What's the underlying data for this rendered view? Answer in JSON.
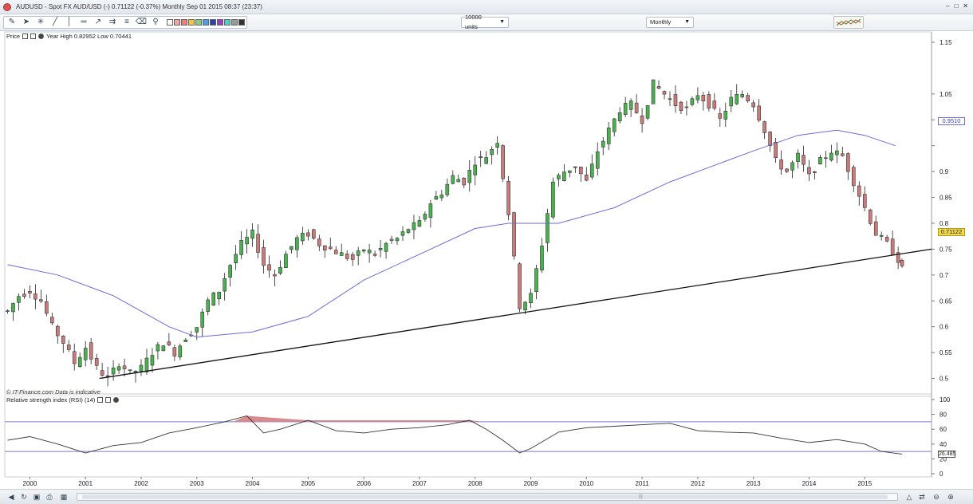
{
  "window": {
    "title": "AUDUSD - Spot FX AUD/USD (-)    0.71122 (-0.37%)    Monthly   Sep 01 2015 08:37 (23:37)",
    "controls": [
      "‒",
      "□",
      "✕"
    ]
  },
  "toolbar": {
    "units_label": "10000 units",
    "interval_label": "Monthly",
    "tool_icons": [
      "ruler-icon",
      "pointer-icon",
      "crosshair-icon",
      "line-icon",
      "vertical-line-icon",
      "horizontal-line-icon",
      "trend-icon",
      "channel-icon",
      "fibonacci-icon",
      "delete-icon",
      "zoom-icon"
    ],
    "swatch_colors": [
      "#ffffff",
      "#f4a3a3",
      "#f27c7c",
      "#f5c542",
      "#7fd17f",
      "#4a9fe0",
      "#2f3fae",
      "#9a3fc0",
      "#4ad0d0",
      "#999999",
      "#333333"
    ]
  },
  "price_panel": {
    "title": "Price",
    "stats": "Year High 0.82952 Low 0.70441",
    "footer": "© IT-Finance.com  Data is indicative",
    "last_price_tag": "0.71122",
    "ma_tag": "0.9510"
  },
  "rsi_panel": {
    "title": "Relative strength index (RSI) (14)",
    "value_tag": "26.485"
  },
  "colors": {
    "up_candle": "#4caf50",
    "down_candle": "#c77b7b",
    "moving_average": "#6a6ae0",
    "trendline": "#111111",
    "rsi_line": "#333333",
    "rsi_band": "#7b7bd6",
    "overbought_fill": "#d98a8a"
  },
  "chart_data": [
    {
      "type": "candlestick",
      "title": "AUDUSD - Spot FX AUD/USD (-)",
      "interval": "Monthly",
      "x": [
        1999.6,
        1999.8,
        2000.0,
        2000.2,
        2000.4,
        2000.6,
        2000.8,
        2001.0,
        2001.2,
        2001.4,
        2001.6,
        2001.8,
        2002.0,
        2002.2,
        2002.4,
        2002.6,
        2002.8,
        2003.0,
        2003.2,
        2003.4,
        2003.6,
        2003.8,
        2004.0,
        2004.2,
        2004.4,
        2004.6,
        2004.8,
        2005.0,
        2005.2,
        2005.4,
        2005.6,
        2005.8,
        2006.0,
        2006.2,
        2006.4,
        2006.6,
        2006.8,
        2007.0,
        2007.2,
        2007.4,
        2007.6,
        2007.8,
        2008.0,
        2008.2,
        2008.4,
        2008.6,
        2008.8,
        2009.0,
        2009.2,
        2009.4,
        2009.6,
        2009.8,
        2010.0,
        2010.2,
        2010.4,
        2010.6,
        2010.8,
        2011.0,
        2011.2,
        2011.4,
        2011.6,
        2011.8,
        2012.0,
        2012.2,
        2012.4,
        2012.6,
        2012.8,
        2013.0,
        2013.2,
        2013.4,
        2013.6,
        2013.8,
        2014.0,
        2014.2,
        2014.4,
        2014.6,
        2014.8,
        2015.0,
        2015.2,
        2015.4,
        2015.6,
        2015.67
      ],
      "close": [
        0.63,
        0.66,
        0.67,
        0.65,
        0.6,
        0.57,
        0.53,
        0.56,
        0.52,
        0.5,
        0.53,
        0.51,
        0.52,
        0.55,
        0.57,
        0.55,
        0.58,
        0.6,
        0.65,
        0.67,
        0.72,
        0.76,
        0.78,
        0.72,
        0.7,
        0.74,
        0.77,
        0.78,
        0.76,
        0.75,
        0.74,
        0.73,
        0.75,
        0.74,
        0.76,
        0.77,
        0.79,
        0.8,
        0.84,
        0.86,
        0.89,
        0.88,
        0.92,
        0.93,
        0.96,
        0.82,
        0.64,
        0.66,
        0.76,
        0.88,
        0.9,
        0.91,
        0.88,
        0.94,
        0.98,
        1.02,
        1.03,
        1.0,
        1.07,
        1.05,
        1.03,
        1.02,
        1.05,
        1.03,
        1.0,
        1.04,
        1.05,
        1.03,
        0.98,
        0.92,
        0.9,
        0.93,
        0.89,
        0.92,
        0.94,
        0.93,
        0.88,
        0.83,
        0.78,
        0.76,
        0.73,
        0.71122
      ],
      "ma_x": [
        1999.6,
        2000.5,
        2001.5,
        2002.5,
        2003.0,
        2004.0,
        2005.0,
        2006.0,
        2007.0,
        2008.0,
        2008.6,
        2009.5,
        2010.5,
        2011.5,
        2012.5,
        2013.0,
        2013.8,
        2014.5,
        2015.0,
        2015.55
      ],
      "ma": [
        0.72,
        0.7,
        0.66,
        0.6,
        0.58,
        0.59,
        0.62,
        0.69,
        0.74,
        0.79,
        0.8,
        0.8,
        0.83,
        0.88,
        0.92,
        0.94,
        0.97,
        0.98,
        0.97,
        0.95
      ],
      "trendline": {
        "from": [
          2001.25,
          0.5
        ],
        "to": [
          2016.2,
          0.75
        ]
      },
      "year_high": 0.82952,
      "year_low": 0.70441,
      "last": 0.71122,
      "ma_last": 0.951,
      "y_ticks": [
        0.5,
        0.55,
        0.6,
        0.65,
        0.7,
        0.75,
        0.8,
        0.85,
        0.9,
        0.95,
        1,
        1.05,
        1.15
      ],
      "y_tick_labels": [
        "0.5",
        "0.55",
        "0.6",
        "0.65",
        "0.7",
        "0.75",
        "0.8",
        "0.85",
        "0.9",
        "",
        "1",
        "1.05",
        "1.15"
      ],
      "x_ticks": [
        "2000",
        "2001",
        "2002",
        "2003",
        "2004",
        "2005",
        "2006",
        "2007",
        "2008",
        "2009",
        "2010",
        "2011",
        "2012",
        "2013",
        "2014",
        "2015"
      ],
      "ylim": [
        0.47,
        1.17
      ],
      "xlim": [
        1999.55,
        2016.2
      ]
    },
    {
      "type": "line",
      "title": "Relative strength index (RSI) (14)",
      "x": [
        1999.6,
        2000.0,
        2000.5,
        2001.0,
        2001.5,
        2002.0,
        2002.5,
        2003.0,
        2003.5,
        2003.9,
        2004.2,
        2004.5,
        2005.0,
        2005.5,
        2006.0,
        2006.5,
        2007.0,
        2007.5,
        2007.9,
        2008.2,
        2008.5,
        2008.8,
        2009.0,
        2009.5,
        2010.0,
        2010.5,
        2011.0,
        2011.5,
        2012.0,
        2012.5,
        2013.0,
        2013.5,
        2014.0,
        2014.5,
        2015.0,
        2015.3,
        2015.67
      ],
      "values": [
        45,
        50,
        40,
        28,
        38,
        42,
        55,
        62,
        70,
        78,
        55,
        60,
        72,
        58,
        55,
        60,
        62,
        66,
        72,
        60,
        45,
        28,
        34,
        56,
        62,
        64,
        66,
        68,
        58,
        56,
        55,
        48,
        42,
        46,
        40,
        30,
        26.485
      ],
      "bands": [
        30,
        70
      ],
      "y_ticks": [
        0,
        20,
        40,
        60,
        80,
        100
      ],
      "value_tag": 26.485,
      "ylim": [
        0,
        100
      ]
    }
  ]
}
